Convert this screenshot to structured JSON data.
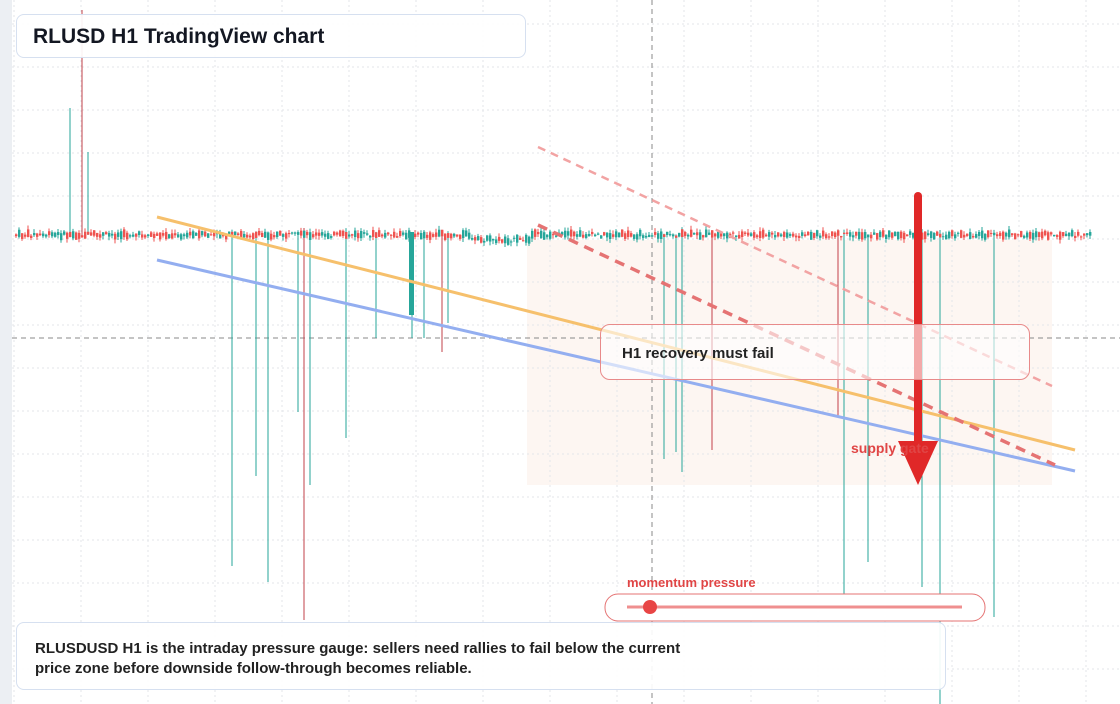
{
  "header": {
    "title": "RLUSD H1 TradingView chart"
  },
  "annotations": {
    "callout": "H1 recovery must fail",
    "arrow_label": "supply gate",
    "gauge_label": "momentum pressure"
  },
  "footer": {
    "text": "RLUSDUSD H1 is the intraday pressure gauge: sellers need rallies to fail below the current price zone before downside follow-through becomes reliable."
  }
}
